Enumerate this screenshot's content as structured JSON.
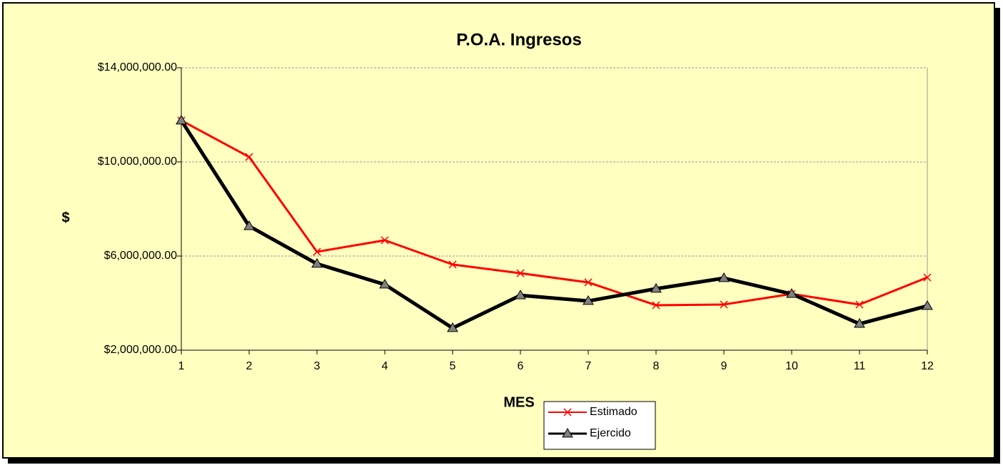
{
  "chart_data": {
    "type": "line",
    "title": "P.O.A. Ingresos",
    "y_label": "$",
    "x_label": "MES",
    "categories": [
      1,
      2,
      3,
      4,
      5,
      6,
      7,
      8,
      9,
      10,
      11,
      12
    ],
    "series": [
      {
        "name": "Estimado",
        "color": "#ff0000",
        "marker": "x",
        "values": [
          11760000,
          10210000,
          6180000,
          6670000,
          5640000,
          5270000,
          4880000,
          3910000,
          3940000,
          4390000,
          3940000,
          5090000
        ]
      },
      {
        "name": "Ejercido",
        "color": "#000000",
        "marker": "triangle",
        "values": [
          11760000,
          7270000,
          5670000,
          4790000,
          2940000,
          4330000,
          4090000,
          4610000,
          5060000,
          4390000,
          3120000,
          3880000
        ]
      }
    ],
    "ylim": [
      2000000,
      14000000
    ],
    "yticks": [
      {
        "value": 2000000,
        "label": "$2,000,000.00"
      },
      {
        "value": 6000000,
        "label": "$6,000,000.00"
      },
      {
        "value": 10000000,
        "label": "$10,000,000.00"
      },
      {
        "value": 14000000,
        "label": "$14,000,000.00"
      }
    ],
    "grid": true,
    "legend": "bottom"
  }
}
